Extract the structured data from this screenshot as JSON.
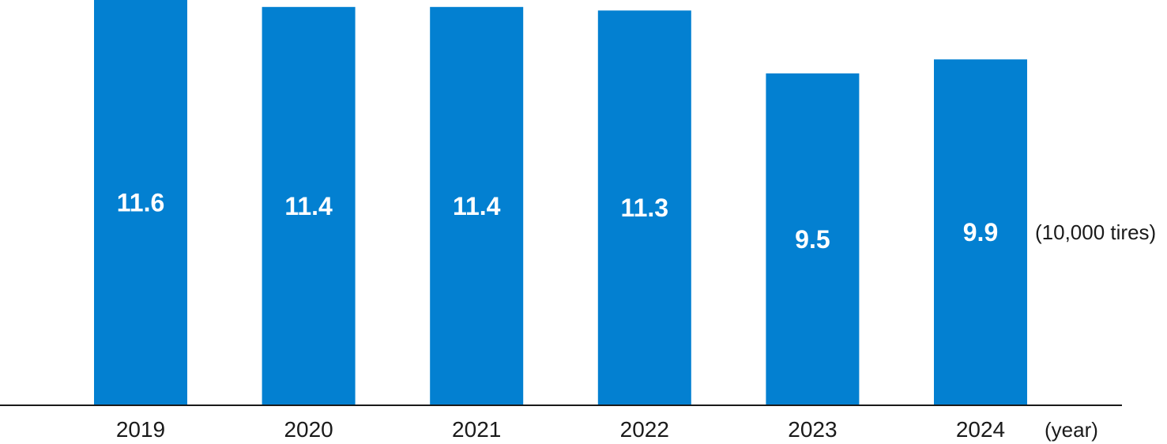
{
  "chart_data": {
    "type": "bar",
    "categories": [
      "2019",
      "2020",
      "2021",
      "2022",
      "2023",
      "2024"
    ],
    "values": [
      11.6,
      11.4,
      11.4,
      11.3,
      9.5,
      9.9
    ],
    "data_labels": [
      "11.6",
      "11.4",
      "11.4",
      "11.3",
      "9.5",
      "9.9"
    ],
    "title": "",
    "xlabel": "(year)",
    "ylabel": "(10,000 tires)",
    "ylim": [
      0,
      11.6
    ],
    "grid": false,
    "bar_color": "#0380D1",
    "axis_color": "#1a1a1a"
  }
}
